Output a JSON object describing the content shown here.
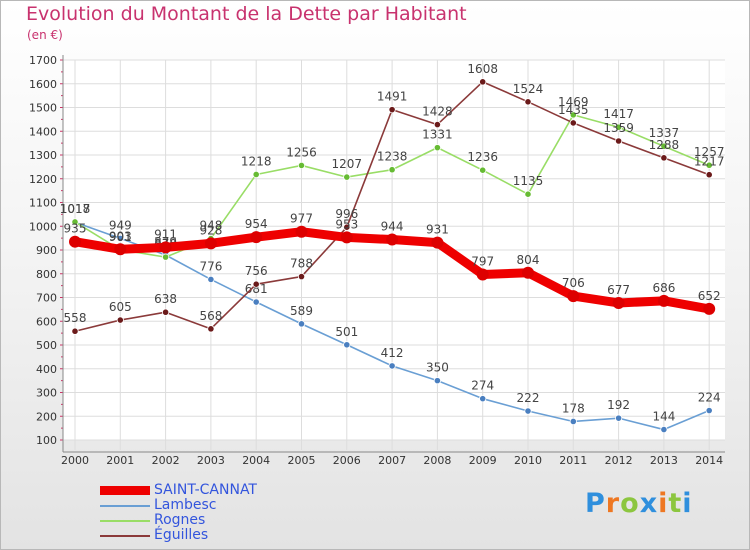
{
  "chart_data": {
    "type": "line",
    "title": "Evolution du Montant de la Dette par Habitant",
    "ylabel": "(en €)",
    "xlabel": "",
    "x": [
      "2000",
      "2001",
      "2002",
      "2003",
      "2004",
      "2005",
      "2006",
      "2007",
      "2008",
      "2009",
      "2010",
      "2011",
      "2012",
      "2013",
      "2014"
    ],
    "y_ticks": [
      "100",
      "200",
      "300",
      "400",
      "500",
      "600",
      "700",
      "800",
      "900",
      "1000",
      "1100",
      "1200",
      "1300",
      "1400",
      "1500",
      "1600",
      "1700"
    ],
    "ylim": [
      100,
      1700
    ],
    "grid": true,
    "legend_position": "bottom-left",
    "series": [
      {
        "name": "Lambesc",
        "color": "#6a9fd4",
        "marker": "#4a7fc0",
        "values": [
          1017,
          949,
          879,
          776,
          681,
          589,
          501,
          412,
          350,
          274,
          222,
          178,
          192,
          144,
          224
        ],
        "labels": [
          "1017",
          "949",
          "879",
          "776",
          "681",
          "589",
          "501",
          "412",
          "350",
          "274",
          "222",
          "178",
          "192",
          "144",
          "224"
        ]
      },
      {
        "name": "Rognes",
        "color": "#99dd66",
        "marker": "#66bb33",
        "values": [
          1018,
          901,
          870,
          948,
          1218,
          1256,
          1207,
          1238,
          1331,
          1236,
          1135,
          1469,
          1417,
          1337,
          1257
        ],
        "labels": [
          "1018",
          "901",
          "870",
          "948",
          "1218",
          "1256",
          "1207",
          "1238",
          "1331",
          "1236",
          "1135",
          "1469",
          "1417",
          "1337",
          "1257"
        ]
      },
      {
        "name": "Éguilles",
        "color": "#8b3a3a",
        "marker": "#6b1a1a",
        "values": [
          558,
          605,
          638,
          568,
          756,
          788,
          996,
          1491,
          1428,
          1608,
          1524,
          1435,
          1359,
          1288,
          1217
        ],
        "labels": [
          "558",
          "605",
          "638",
          "568",
          "756",
          "788",
          "996",
          "1491",
          "1428",
          "1608",
          "1524",
          "1435",
          "1359",
          "1288",
          "1217"
        ]
      },
      {
        "name": "SAINT-CANNAT",
        "color": "#ee0000",
        "marker": "#dd0000",
        "values": [
          935,
          903,
          911,
          928,
          954,
          977,
          953,
          944,
          931,
          797,
          804,
          706,
          677,
          686,
          652
        ],
        "labels": [
          "935",
          "903",
          "911",
          "928",
          "954",
          "977",
          "953",
          "944",
          "931",
          "797",
          "804",
          "706",
          "677",
          "686",
          "652"
        ]
      }
    ]
  },
  "logo": {
    "text": "Proxiti",
    "letters": [
      "P",
      "r",
      "o",
      "x",
      "i",
      "t",
      "i"
    ],
    "colors": [
      "#2f8fdd",
      "#ee7722",
      "#8cc63f",
      "#2f8fdd",
      "#ee7722",
      "#8cc63f",
      "#2f8fdd"
    ]
  }
}
